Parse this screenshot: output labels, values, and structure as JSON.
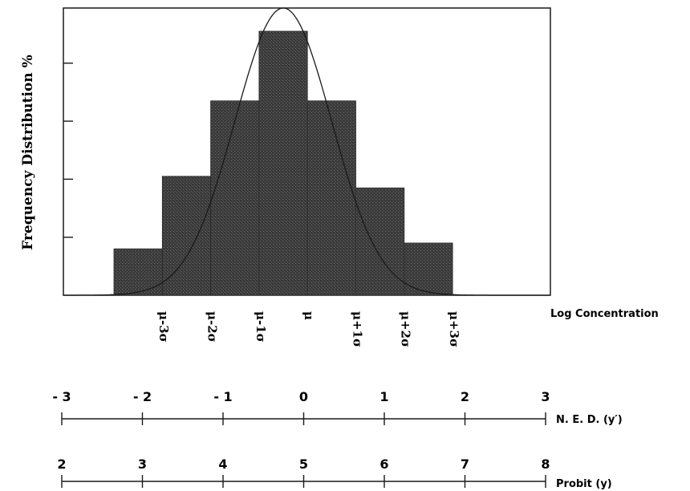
{
  "chart_data": {
    "type": "bar",
    "ylabel": "Frequency Distribution %",
    "xlabel": "Log Concentration",
    "categories": [
      "μ-3σ",
      "μ-2σ",
      "μ-1σ",
      "μ",
      "μ+1σ",
      "μ+2σ",
      "μ+3σ"
    ],
    "values": [
      0.8,
      2.05,
      3.35,
      4.55,
      3.35,
      1.85,
      0.9
    ],
    "ylim": [
      0,
      4.95
    ],
    "y_ticks": [
      1,
      2,
      3,
      4
    ],
    "curve": "normal",
    "bar_color": "#3d3d3d",
    "scales": [
      {
        "name": "N. E. D. (y′)",
        "ticks": [
          "- 3",
          "- 2",
          "- 1",
          "0",
          "1",
          "2",
          "3"
        ]
      },
      {
        "name": "Probit  (y)",
        "ticks": [
          "2",
          "3",
          "4",
          "5",
          "6",
          "7",
          "8"
        ]
      }
    ]
  }
}
